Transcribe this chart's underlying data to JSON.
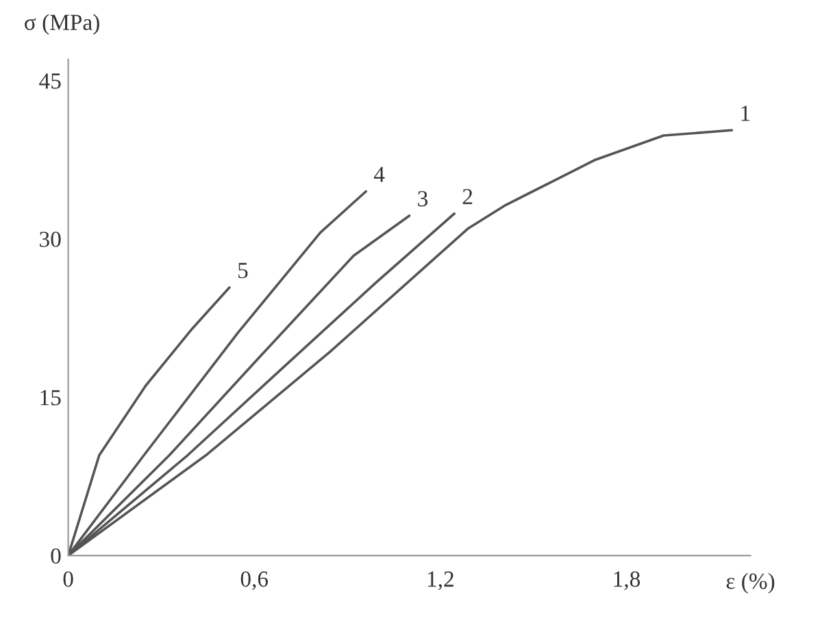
{
  "chart_data": {
    "type": "line",
    "xlabel": "ε (%)",
    "ylabel": "σ (MPa)",
    "xlim": [
      0,
      2.2
    ],
    "ylim": [
      0,
      47
    ],
    "xticks": [
      {
        "value": 0,
        "label": "0"
      },
      {
        "value": 0.6,
        "label": "0,6"
      },
      {
        "value": 1.2,
        "label": "1,2"
      },
      {
        "value": 1.8,
        "label": "1,8"
      }
    ],
    "yticks": [
      0,
      15,
      30,
      45
    ],
    "grid": false,
    "legend": false,
    "marker": "none",
    "line_style": "solid",
    "series": [
      {
        "name": "1",
        "color": "#555555",
        "x": [
          0,
          0.444,
          0.844,
          1.29,
          1.41,
          1.7,
          1.92,
          2.14
        ],
        "values": [
          0,
          9.5,
          19.3,
          31.0,
          33.2,
          37.5,
          39.8,
          40.3
        ]
      },
      {
        "name": "2",
        "color": "#555555",
        "x": [
          0,
          0.385,
          0.7,
          0.99,
          1.245
        ],
        "values": [
          0,
          9.5,
          18.0,
          25.8,
          32.4
        ]
      },
      {
        "name": "3",
        "color": "#555555",
        "x": [
          0,
          0.326,
          0.62,
          0.92,
          1.1
        ],
        "values": [
          0,
          9.5,
          18.9,
          28.4,
          32.2
        ]
      },
      {
        "name": "4",
        "color": "#555555",
        "x": [
          0,
          0.244,
          0.547,
          0.813,
          0.96
        ],
        "values": [
          0,
          9.5,
          21.1,
          30.6,
          34.5
        ]
      },
      {
        "name": "5",
        "color": "#555555",
        "x": [
          0,
          0.1,
          0.25,
          0.4,
          0.52
        ],
        "values": [
          0,
          9.5,
          16.1,
          21.5,
          25.4
        ]
      }
    ]
  }
}
